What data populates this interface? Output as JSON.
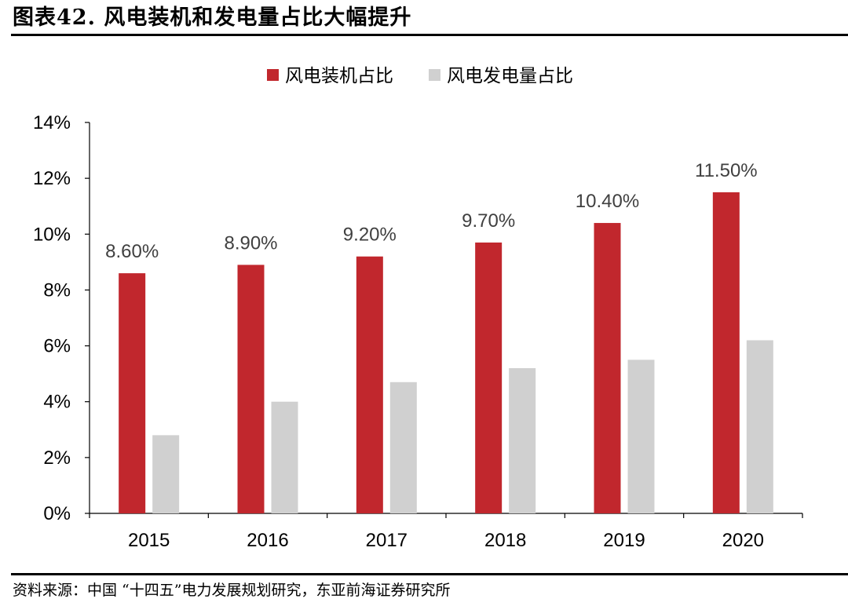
{
  "header": {
    "title": "图表42. 风电装机和发电量占比大幅提升"
  },
  "footer": {
    "source": "资料来源：中国 “十四五”电力发展规划研究，东亚前海证券研究所"
  },
  "chart_data": {
    "type": "bar",
    "categories": [
      "2015",
      "2016",
      "2017",
      "2018",
      "2019",
      "2020"
    ],
    "series": [
      {
        "name": "风电装机占比",
        "color": "#c1272d",
        "values": [
          8.6,
          8.9,
          9.2,
          9.7,
          10.4,
          11.5
        ],
        "labels": [
          "8.60%",
          "8.90%",
          "9.20%",
          "9.70%",
          "10.40%",
          "11.50%"
        ]
      },
      {
        "name": "风电发电量占比",
        "color": "#d0d0d0",
        "values": [
          2.8,
          4.0,
          4.7,
          5.2,
          5.5,
          6.2
        ]
      }
    ],
    "ylim": [
      0,
      14
    ],
    "yticks": [
      "0%",
      "2%",
      "4%",
      "6%",
      "8%",
      "10%",
      "12%",
      "14%"
    ],
    "grid": false,
    "legend": "top-center"
  }
}
